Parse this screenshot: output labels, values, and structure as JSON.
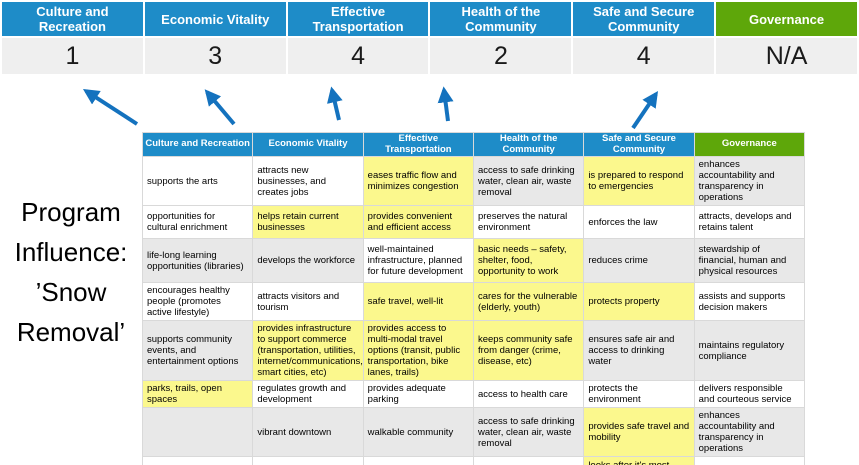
{
  "colors": {
    "header_blue": "#1E8CC8",
    "header_green": "#5EA70A",
    "score_row_bg": "#EFEFEF",
    "cell_gray": "#E8E8E8",
    "highlight_yellow": "#FBF88D",
    "arrow_blue": "#1472BE"
  },
  "program_title": "Program\nInfluence:\n’Snow\nRemoval’",
  "banner": {
    "columns": [
      {
        "name": "Culture and Recreation",
        "score": "1",
        "type": "blue"
      },
      {
        "name": "Economic Vitality",
        "score": "3",
        "type": "blue"
      },
      {
        "name": "Effective Transportation",
        "score": "4",
        "type": "blue"
      },
      {
        "name": "Health of the Community",
        "score": "2",
        "type": "blue"
      },
      {
        "name": "Safe and Secure Community",
        "score": "4",
        "type": "blue"
      },
      {
        "name": "Governance",
        "score": "N/A",
        "type": "green"
      }
    ]
  },
  "matrix": {
    "headers": [
      {
        "label": "Culture and Recreation",
        "type": "blue"
      },
      {
        "label": "Economic Vitality",
        "type": "blue"
      },
      {
        "label": "Effective Transportation",
        "type": "blue"
      },
      {
        "label": "Health of the Community",
        "type": "blue"
      },
      {
        "label": "Safe and Secure Community",
        "type": "blue"
      },
      {
        "label": "Governance",
        "type": "green"
      }
    ],
    "rows": [
      [
        {
          "text": "supports the arts",
          "bg": "white"
        },
        {
          "text": "attracts new businesses, and creates jobs",
          "bg": "white"
        },
        {
          "text": "eases traffic flow and minimizes congestion",
          "bg": "yellow"
        },
        {
          "text": "access to safe drinking water, clean air, waste removal",
          "bg": "gray"
        },
        {
          "text": "is prepared to respond to emergencies",
          "bg": "yellow"
        },
        {
          "text": "enhances accountability and transparency in operations",
          "bg": "gray"
        }
      ],
      [
        {
          "text": "opportunities for cultural enrichment",
          "bg": "white"
        },
        {
          "text": "helps retain current businesses",
          "bg": "yellow"
        },
        {
          "text": "provides convenient and efficient access",
          "bg": "yellow"
        },
        {
          "text": "preserves the natural environment",
          "bg": "white"
        },
        {
          "text": "enforces the law",
          "bg": "white"
        },
        {
          "text": "attracts, develops and retains talent",
          "bg": "white"
        }
      ],
      [
        {
          "text": "life-long learning opportunities (libraries)",
          "bg": "gray"
        },
        {
          "text": "develops the workforce",
          "bg": "gray"
        },
        {
          "text": "well-maintained infrastructure, planned for future development",
          "bg": "white"
        },
        {
          "text": "basic needs – safety, shelter, food, opportunity to work",
          "bg": "yellow"
        },
        {
          "text": "reduces crime",
          "bg": "gray"
        },
        {
          "text": "stewardship of financial, human and physical resources",
          "bg": "gray"
        }
      ],
      [
        {
          "text": "encourages healthy people (promotes active lifestyle)",
          "bg": "white"
        },
        {
          "text": "attracts visitors and tourism",
          "bg": "white"
        },
        {
          "text": "safe travel, well-lit",
          "bg": "yellow"
        },
        {
          "text": "cares for the vulnerable (elderly, youth)",
          "bg": "yellow"
        },
        {
          "text": "protects property",
          "bg": "yellow"
        },
        {
          "text": "assists and supports decision makers",
          "bg": "white"
        }
      ],
      [
        {
          "text": "supports community events, and entertainment options",
          "bg": "gray"
        },
        {
          "text": "provides infrastructure to support commerce (transportation, utilities, internet/communications, smart cities, etc)",
          "bg": "yellow"
        },
        {
          "text": "provides access to multi-modal travel options (transit, public transportation, bike lanes, trails)",
          "bg": "yellow"
        },
        {
          "text": "keeps community safe from danger (crime, disease, etc)",
          "bg": "yellow"
        },
        {
          "text": "ensures safe air and access to drinking water",
          "bg": "gray"
        },
        {
          "text": "maintains regulatory compliance",
          "bg": "gray"
        }
      ],
      [
        {
          "text": "parks, trails, open spaces",
          "bg": "yellow"
        },
        {
          "text": "regulates growth and development",
          "bg": "white"
        },
        {
          "text": "provides adequate parking",
          "bg": "white"
        },
        {
          "text": "access to health care",
          "bg": "white"
        },
        {
          "text": "protects the environment",
          "bg": "white"
        },
        {
          "text": "delivers responsible and courteous service",
          "bg": "white"
        }
      ],
      [
        {
          "text": "",
          "bg": "gray"
        },
        {
          "text": "vibrant downtown",
          "bg": "gray"
        },
        {
          "text": "walkable community",
          "bg": "gray"
        },
        {
          "text": "access to safe drinking water, clean air, waste removal",
          "bg": "gray"
        },
        {
          "text": "provides safe travel and mobility",
          "bg": "yellow"
        },
        {
          "text": "enhances accountability and transparency in operations",
          "bg": "gray"
        }
      ],
      [
        {
          "text": "",
          "bg": "white"
        },
        {
          "text": "",
          "bg": "white"
        },
        {
          "text": "",
          "bg": "white"
        },
        {
          "text": "",
          "bg": "white"
        },
        {
          "text": "looks after it's most vulnerable",
          "bg": "yellow"
        },
        {
          "text": "",
          "bg": "none"
        }
      ]
    ]
  }
}
